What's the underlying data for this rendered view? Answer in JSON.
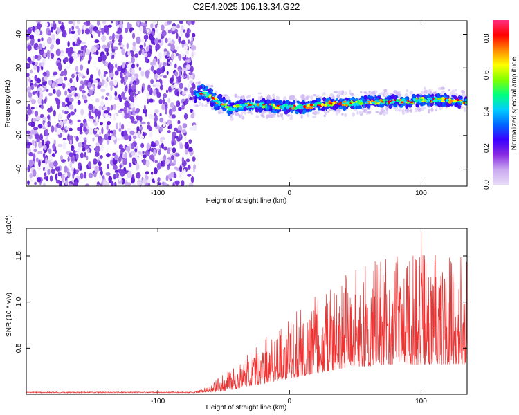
{
  "chart_data": [
    {
      "type": "heatmap",
      "title": "C2E4.2025.106.13.34.G22",
      "xlabel": "Height of straight line (km)",
      "ylabel": "Frequency (Hz)",
      "xlim": [
        -200,
        135
      ],
      "ylim": [
        -50,
        48
      ],
      "x_ticks": [
        -100,
        0,
        100
      ],
      "y_ticks": [
        40,
        20,
        0,
        -20,
        -40
      ],
      "noise_region_x": [
        -200,
        -72
      ],
      "signal_track": {
        "x": [
          -72,
          -65,
          -60,
          -55,
          -50,
          -45,
          -40,
          -30,
          -20,
          -10,
          0,
          10,
          20,
          30,
          40,
          50,
          60,
          70,
          80,
          90,
          100,
          110,
          120,
          130,
          135
        ],
        "y": [
          4,
          5,
          3,
          0,
          -2,
          -4,
          -3,
          -2,
          -2,
          -3,
          -3,
          -3,
          -2,
          -1,
          -1,
          -1,
          0,
          0,
          0,
          0,
          1,
          1,
          1,
          0,
          0
        ]
      },
      "colorbar": {
        "label": "Normalized spectral amplitude",
        "range": [
          0,
          0.9
        ],
        "ticks": [
          "0.0",
          "0.2",
          "0.4",
          "0.6",
          "0.8"
        ],
        "colors": [
          "#e8dcf8",
          "#c9a9f0",
          "#8a2be2",
          "#3a00ff",
          "#0066ff",
          "#00ccff",
          "#00ff80",
          "#80ff00",
          "#ffff00",
          "#ff8800",
          "#ff0000",
          "#ff3080"
        ]
      }
    },
    {
      "type": "line",
      "title": "",
      "xlabel": "Height of straight line (km)",
      "ylabel": "SNR (10 * v/v)",
      "multiplier_label": "(x10",
      "multiplier_exp": "4",
      "xlim": [
        -200,
        135
      ],
      "ylim": [
        0,
        1.8
      ],
      "x_ticks": [
        -100,
        0,
        100
      ],
      "y_ticks": [
        "0.5",
        "1.0",
        "1.5"
      ],
      "y_tick_values": [
        0.5,
        1.0,
        1.5
      ],
      "color": "#ee3333",
      "envelope": {
        "x": [
          -200,
          -72,
          -60,
          -50,
          -40,
          -30,
          -20,
          -10,
          0,
          10,
          20,
          30,
          40,
          50,
          60,
          70,
          80,
          90,
          100,
          110,
          120,
          135
        ],
        "baseline": [
          0.02,
          0.02,
          0.05,
          0.1,
          0.16,
          0.22,
          0.28,
          0.34,
          0.4,
          0.46,
          0.52,
          0.57,
          0.62,
          0.66,
          0.69,
          0.71,
          0.73,
          0.74,
          0.75,
          0.75,
          0.74,
          0.72
        ],
        "spread": [
          0.01,
          0.01,
          0.05,
          0.12,
          0.18,
          0.24,
          0.3,
          0.36,
          0.42,
          0.48,
          0.54,
          0.58,
          0.62,
          0.66,
          0.7,
          0.72,
          0.74,
          0.76,
          0.78,
          0.78,
          0.76,
          0.72
        ]
      },
      "peak": {
        "x": 100,
        "y": 1.78
      }
    }
  ]
}
